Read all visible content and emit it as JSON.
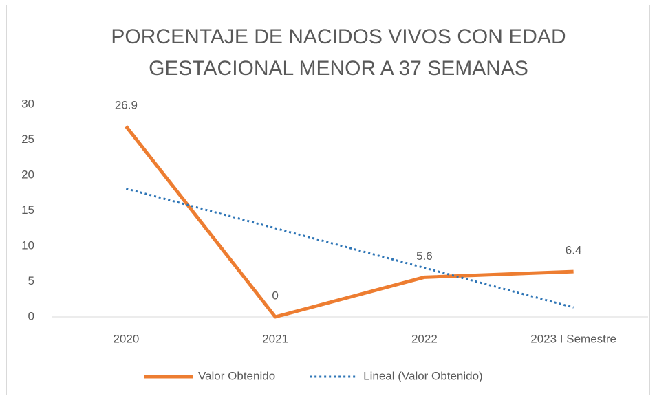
{
  "chart_data": {
    "type": "line",
    "title": [
      "PORCENTAJE DE NACIDOS VIVOS CON EDAD",
      "GESTACIONAL MENOR A 37 SEMANAS"
    ],
    "categories": [
      "2020",
      "2021",
      "2022",
      "2023 I Semestre"
    ],
    "series": [
      {
        "name": "Valor Obtenido",
        "color": "#ed7d31",
        "style": "solid",
        "data_labels": true,
        "values": [
          26.9,
          0,
          5.6,
          6.4
        ]
      },
      {
        "name": "Lineal (Valor Obtenido)",
        "color": "#2e75b6",
        "style": "dotted",
        "data_labels": false,
        "values": [
          18.11,
          12.52,
          6.93,
          1.34
        ]
      }
    ],
    "ylim": [
      0,
      30
    ],
    "yticks": [
      0,
      5,
      10,
      15,
      20,
      25,
      30
    ],
    "grid": false,
    "legend": "bottom"
  }
}
